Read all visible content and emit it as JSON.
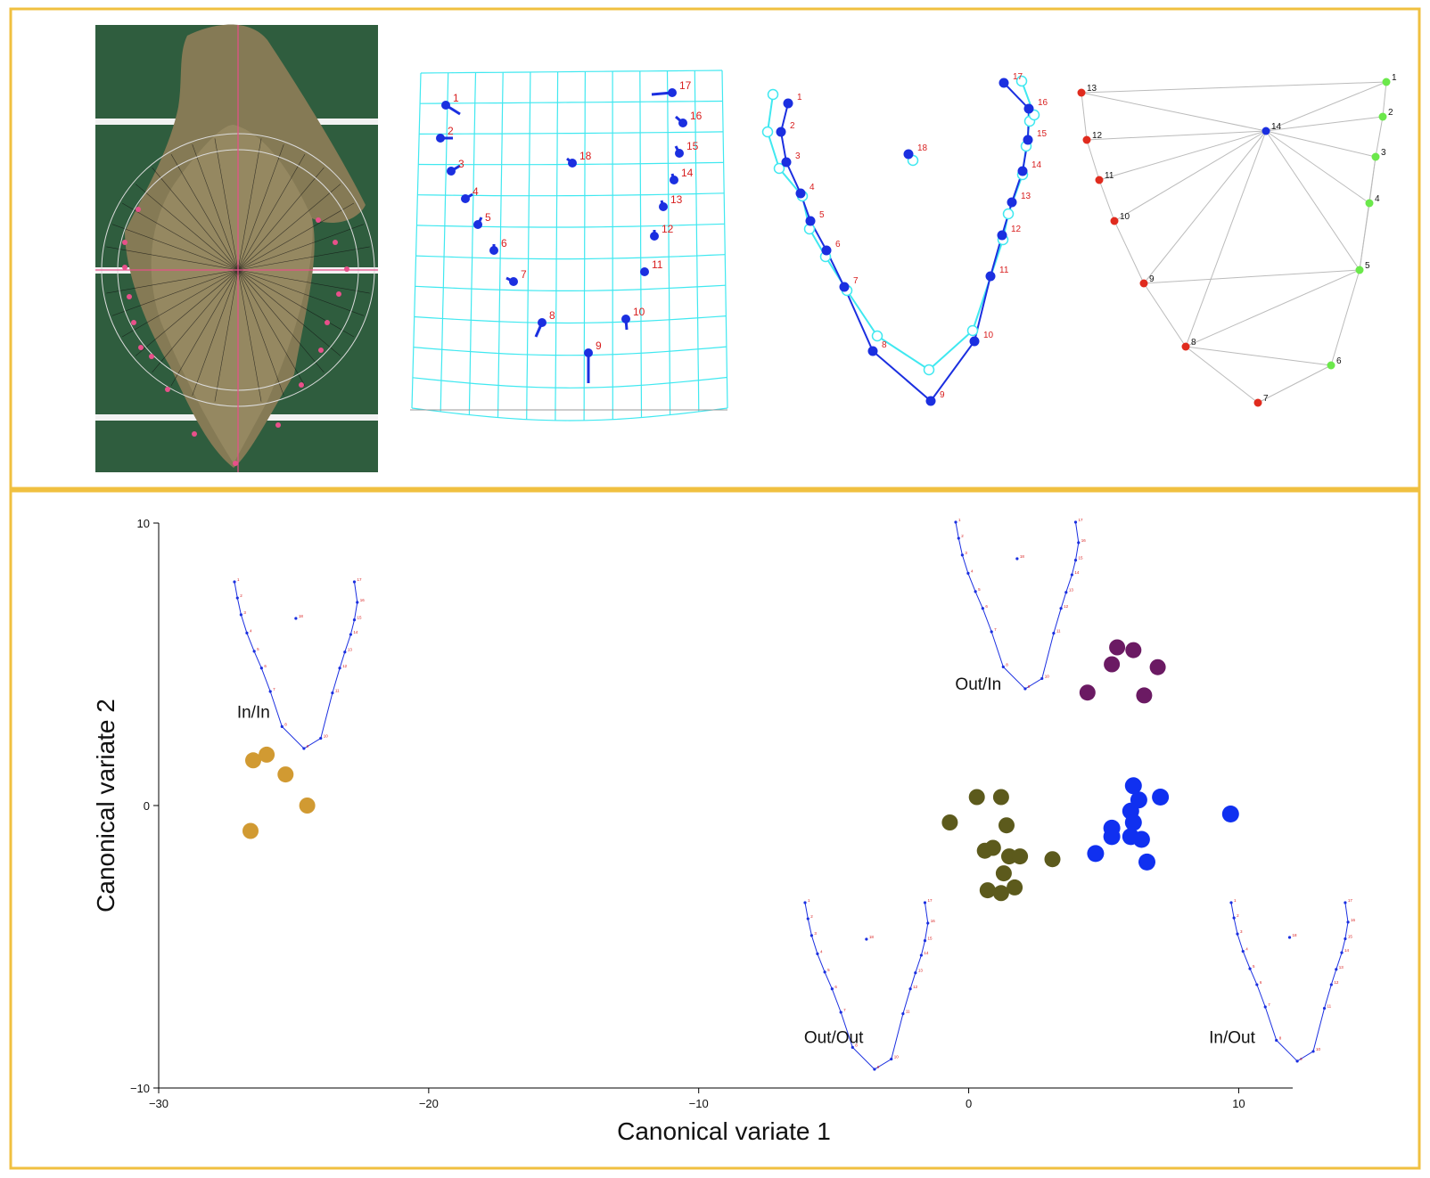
{
  "colors": {
    "frame": "#f0c040",
    "board_green": "#2f5d3e",
    "tissue": "#857a55",
    "pink": "#e8508a",
    "grid_cyan": "#40e8f0",
    "landmark_blue": "#1b2fe0",
    "label_red": "#d81e1e",
    "mesh_gray": "#bbbbbb",
    "point_red": "#e02b1e",
    "point_green": "#6be84b",
    "in_in": "#d19a32",
    "out_in": "#6b1a63",
    "in_out": "#1030f0",
    "out_out": "#5c5a1c"
  },
  "landmarks": {
    "labels": [
      "1",
      "2",
      "3",
      "4",
      "5",
      "6",
      "7",
      "8",
      "9",
      "10",
      "11",
      "12",
      "13",
      "14",
      "15",
      "16",
      "17",
      "18"
    ]
  },
  "mesh": {
    "labels": [
      "13",
      "12",
      "11",
      "10",
      "9",
      "8",
      "7",
      "6",
      "5",
      "4",
      "3",
      "2",
      "1",
      "14"
    ]
  },
  "chart_data": {
    "type": "scatter",
    "xlabel": "Canonical variate 1",
    "ylabel": "Canonical variate 2",
    "xlim": [
      -30,
      12
    ],
    "ylim": [
      -10,
      10
    ],
    "xticks": [
      -30,
      -20,
      -10,
      0,
      10
    ],
    "yticks": [
      -10,
      0,
      10
    ],
    "xtick_labels": [
      "−30",
      "−20",
      "−10",
      "0",
      "10"
    ],
    "ytick_labels": [
      "−10",
      "0",
      "10"
    ],
    "series": [
      {
        "name": "In/In",
        "color": "#d19a32",
        "x": [
          -26.0,
          -25.3,
          -26.5,
          -24.5,
          -26.6
        ],
        "y": [
          1.8,
          1.1,
          1.6,
          0.0,
          -0.9
        ]
      },
      {
        "name": "Out/In",
        "color": "#6b1a63",
        "x": [
          5.5,
          6.1,
          5.3,
          7.0,
          4.4,
          6.5
        ],
        "y": [
          5.6,
          5.5,
          5.0,
          4.9,
          4.0,
          3.9
        ]
      },
      {
        "name": "In/Out",
        "color": "#1030f0",
        "x": [
          6.1,
          7.1,
          6.3,
          6.0,
          9.7,
          5.3,
          6.1,
          5.3,
          6.0,
          6.4,
          4.7,
          6.6
        ],
        "y": [
          0.7,
          0.3,
          0.2,
          -0.2,
          -0.3,
          -0.8,
          -0.6,
          -1.1,
          -1.1,
          -1.2,
          -1.7,
          -2.0
        ],
        "marker_size": "large"
      },
      {
        "name": "Out/Out",
        "color": "#5c5a1c",
        "x": [
          0.3,
          1.2,
          -0.7,
          1.4,
          0.6,
          0.9,
          1.5,
          1.9,
          3.1,
          1.3,
          1.7,
          0.7,
          1.2
        ],
        "y": [
          0.3,
          0.3,
          -0.6,
          -0.7,
          -1.6,
          -1.5,
          -1.8,
          -1.8,
          -1.9,
          -2.4,
          -2.9,
          -3.0,
          -3.1
        ]
      }
    ],
    "annotations": [
      {
        "text": "In/In",
        "x": -27.1,
        "y": 3.1
      },
      {
        "text": "Out/In",
        "x": -0.5,
        "y": 4.1
      },
      {
        "text": "Out/Out",
        "x": -6.1,
        "y": -8.4
      },
      {
        "text": "In/Out",
        "x": 8.9,
        "y": -8.4
      }
    ]
  }
}
